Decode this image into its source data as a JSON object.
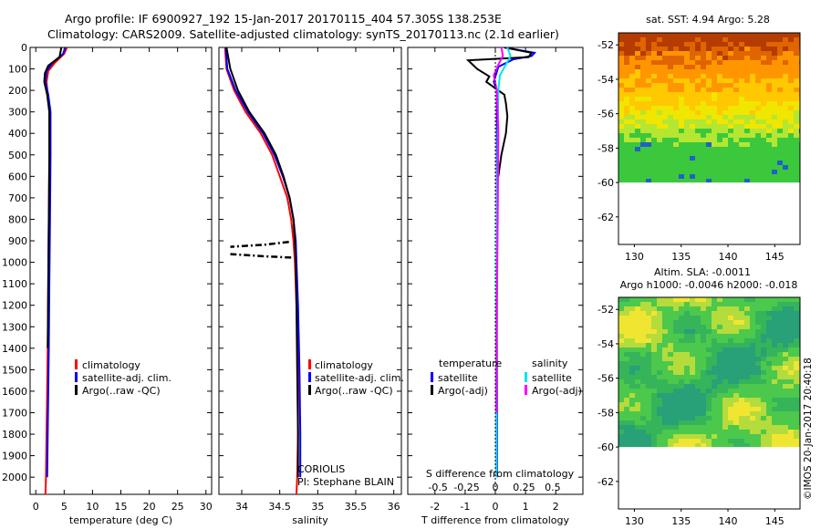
{
  "header": {
    "line1": "Argo profile: IF 6900927_192 15-Jan-2017 20170115_404 57.305S 138.253E",
    "line2": "Climatology: CARS2009. Satellite-adjusted climatology: synTS_20170113.nc (2.1d earlier)"
  },
  "credit": "©IMOS 20-Jan-2017 20:40:18",
  "colors": {
    "red": "#ff0000",
    "blue": "#0000ff",
    "black": "#000000",
    "cyan": "#00e5ee",
    "magenta": "#ff00ff"
  },
  "chart_data": [
    {
      "type": "line",
      "id": "temperature",
      "xlabel": "temperature (deg C)",
      "xlim": [
        -1,
        31
      ],
      "ylim": [
        2080,
        0
      ],
      "xticks": [
        "0",
        "5",
        "10",
        "15",
        "20",
        "25",
        "30"
      ],
      "yticks": [
        "0",
        "100",
        "200",
        "300",
        "400",
        "500",
        "600",
        "700",
        "800",
        "900",
        "1000",
        "1100",
        "1200",
        "1300",
        "1400",
        "1500",
        "1600",
        "1700",
        "1800",
        "1900",
        "2000"
      ],
      "legend": [
        "climatology",
        "satellite-adj. clim.",
        "Argo(..raw -QC)"
      ],
      "series": [
        {
          "name": "climatology",
          "color": "#ff0000",
          "x": [
            5.5,
            5.0,
            3.4,
            2.2,
            1.9,
            2.1,
            2.4,
            2.4,
            2.3,
            2.2,
            2.1,
            2.0,
            1.9,
            1.8,
            1.7
          ],
          "y": [
            0,
            30,
            70,
            110,
            160,
            220,
            300,
            500,
            800,
            1100,
            1400,
            1600,
            1800,
            2000,
            2080
          ]
        },
        {
          "name": "satellite-adj. clim.",
          "color": "#0000ff",
          "x": [
            5.2,
            4.8,
            3.0,
            1.9,
            1.7,
            2.2,
            2.6,
            2.6,
            2.5,
            2.4,
            2.3,
            2.2,
            2.1,
            2.0
          ],
          "y": [
            0,
            30,
            70,
            110,
            160,
            220,
            300,
            500,
            800,
            1100,
            1400,
            1600,
            1800,
            2000
          ]
        },
        {
          "name": "Argo(..raw -QC)",
          "color": "#000000",
          "x": [
            4.5,
            4.2,
            2.2,
            1.6,
            1.5,
            2.0,
            2.4,
            2.4,
            2.3,
            2.2,
            2.1
          ],
          "y": [
            0,
            45,
            85,
            120,
            160,
            220,
            300,
            500,
            800,
            1100,
            1400
          ]
        }
      ]
    },
    {
      "type": "line",
      "id": "salinity",
      "xlabel": "salinity",
      "xlim": [
        33.7,
        36.1
      ],
      "ylim": [
        2080,
        0
      ],
      "xticks": [
        "34",
        "34.5",
        "35",
        "35.5",
        "36"
      ],
      "legend": [
        "climatology",
        "satellite-adj. clim.",
        "Argo(..raw -QC)"
      ],
      "annotation": [
        "CORIOLIS",
        "PI: Stephane BLAIN"
      ],
      "series": [
        {
          "name": "climatology",
          "color": "#ff0000",
          "x": [
            33.78,
            33.8,
            33.9,
            34.05,
            34.25,
            34.4,
            34.5,
            34.6,
            34.65,
            34.68,
            34.7,
            34.72,
            34.74,
            34.74,
            34.73,
            34.72
          ],
          "y": [
            0,
            100,
            200,
            300,
            400,
            500,
            600,
            700,
            800,
            900,
            1000,
            1200,
            1500,
            1800,
            2000,
            2080
          ]
        },
        {
          "name": "satellite-adj. clim.",
          "color": "#0000ff",
          "x": [
            33.79,
            33.81,
            33.92,
            34.08,
            34.28,
            34.43,
            34.54,
            34.63,
            34.68,
            34.71,
            34.72,
            34.74,
            34.76,
            34.77,
            34.77
          ],
          "y": [
            0,
            100,
            200,
            300,
            400,
            500,
            600,
            700,
            800,
            900,
            1000,
            1200,
            1500,
            1800,
            2000
          ]
        },
        {
          "name": "Argo(..raw -QC)",
          "color": "#000000",
          "x": [
            33.8,
            33.85,
            33.95,
            34.1,
            34.3,
            34.45,
            34.55,
            34.63,
            34.68,
            34.7,
            34.71,
            34.72,
            34.73,
            34.74,
            34.74
          ],
          "y": [
            0,
            100,
            200,
            300,
            400,
            500,
            600,
            700,
            800,
            900,
            1000,
            1200,
            1500,
            1800,
            2000
          ]
        },
        {
          "name": "",
          "color": "#000000",
          "dash": true,
          "x": [
            34.62,
            34.3,
            33.85
          ],
          "y": [
            905,
            918,
            928
          ]
        },
        {
          "name": "",
          "color": "#000000",
          "dash": true,
          "x": [
            34.65,
            34.3,
            33.85
          ],
          "y": [
            978,
            972,
            962
          ]
        }
      ]
    },
    {
      "type": "line",
      "id": "difference",
      "xlabel": "T difference from climatology",
      "upper_label": "S difference from climatology",
      "xlim": [
        -2.9,
        2.9
      ],
      "ylim": [
        2080,
        0
      ],
      "xticks": [
        "-2",
        "-1",
        "0",
        "1",
        "2"
      ],
      "upper_ticks": [
        "-0.5",
        "-0.25",
        "0",
        "0.25",
        "0.5"
      ],
      "legend_titles": [
        "temperature",
        "salinity"
      ],
      "legend": [
        "satellite",
        "Argo(-adj)",
        "satellite",
        "Argo(-adj)"
      ],
      "series": [
        {
          "name": "satellite",
          "color": "#0000ff",
          "x": [
            0.3,
            1.3,
            1.2,
            0.6,
            0.1,
            -0.05,
            0.05,
            0.05,
            0.05,
            0.05,
            0.05
          ],
          "y": [
            0,
            25,
            40,
            55,
            90,
            160,
            200,
            500,
            1000,
            1500,
            2000
          ]
        },
        {
          "name": "Argo(-adj)",
          "color": "#000000",
          "x": [
            0.3,
            1.2,
            1.1,
            -0.9,
            -0.6,
            -0.2,
            -0.3,
            0.0,
            0.3,
            0.35,
            0.4,
            0.35,
            0.2,
            0.1
          ],
          "y": [
            0,
            25,
            45,
            60,
            100,
            135,
            160,
            190,
            220,
            260,
            320,
            400,
            500,
            600
          ]
        },
        {
          "name": "satellite",
          "color": "#00e5ee",
          "x": [
            0.4,
            0.5,
            0.35,
            0.15,
            0.1,
            0.08,
            0.05,
            0.03,
            0.03,
            0.03
          ],
          "y": [
            0,
            40,
            80,
            130,
            200,
            400,
            800,
            1200,
            1700,
            2000
          ]
        },
        {
          "name": "Argo(-adj)",
          "color": "#ff00ff",
          "x": [
            0.2,
            0.25,
            0.1,
            -0.05,
            0.05,
            0.1,
            0.08,
            0.05,
            0.03
          ],
          "y": [
            0,
            40,
            80,
            130,
            200,
            400,
            800,
            1200,
            1700
          ]
        }
      ]
    },
    {
      "type": "heatmap",
      "id": "sst-map",
      "title": "sat. SST: 4.94 Argo: 5.28",
      "xticks": [
        "130",
        "135",
        "140",
        "145"
      ],
      "yticks": [
        "-52",
        "-54",
        "-56",
        "-58",
        "-60",
        "-62"
      ],
      "xlim": [
        128.3,
        147.7
      ],
      "ylim": [
        -63.6,
        -51.3
      ],
      "data_ylim": [
        -60,
        -51.3
      ]
    },
    {
      "type": "heatmap",
      "id": "sla-map",
      "title": "Altim. SLA: -0.0011",
      "subtitle": "Argo h1000: -0.0046 h2000: -0.018",
      "xticks": [
        "130",
        "135",
        "140",
        "145"
      ],
      "yticks": [
        "-52",
        "-54",
        "-56",
        "-58",
        "-60",
        "-62"
      ],
      "xlim": [
        128.3,
        147.7
      ],
      "ylim": [
        -63.6,
        -51.3
      ],
      "data_ylim": [
        -60,
        -51.3
      ]
    }
  ]
}
